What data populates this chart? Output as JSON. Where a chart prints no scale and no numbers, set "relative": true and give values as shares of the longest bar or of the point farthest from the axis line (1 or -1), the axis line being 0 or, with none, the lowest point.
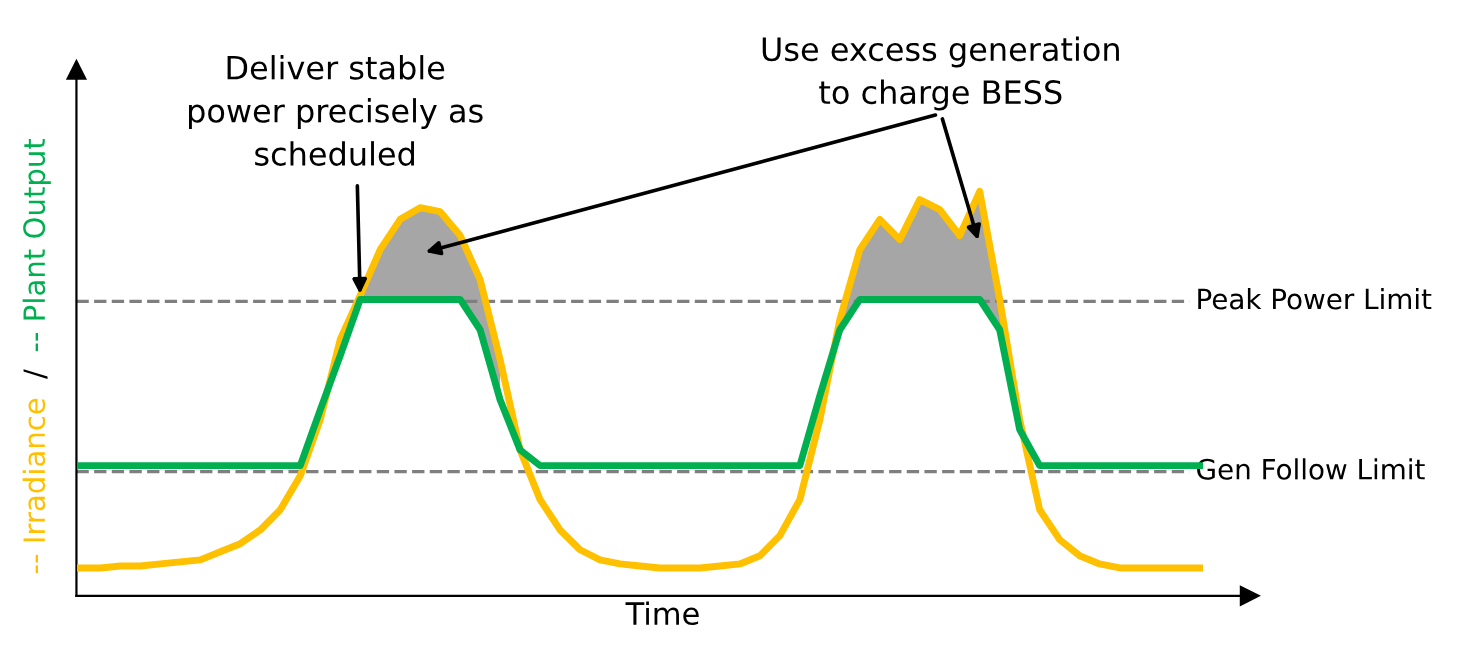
{
  "chart_data": {
    "type": "line",
    "relative": true,
    "categories": [
      null,
      null,
      null,
      null,
      null,
      null,
      null,
      null,
      null,
      null,
      null,
      null,
      null,
      null,
      null,
      null,
      null,
      null,
      null,
      null,
      null,
      null,
      null,
      null,
      null,
      null,
      null,
      null,
      null,
      null,
      null,
      null,
      null,
      null,
      null,
      null,
      null,
      null,
      null,
      null,
      null,
      null,
      null,
      null,
      null,
      null,
      null,
      null,
      null,
      null,
      null,
      null,
      null,
      null,
      null,
      null,
      null
    ],
    "xlabel": "Time",
    "ylabel": "/",
    "marker": "none",
    "line_style": "solid",
    "series": [
      {
        "name": "-- Irradiance",
        "color": "#ffc000",
        "values": [
          0.069,
          0.069,
          0.074,
          0.074,
          0.079,
          0.084,
          0.089,
          0.109,
          0.129,
          0.163,
          0.213,
          0.297,
          0.436,
          0.634,
          0.743,
          0.856,
          0.931,
          0.96,
          0.95,
          0.891,
          0.782,
          0.584,
          0.361,
          0.238,
          0.163,
          0.114,
          0.089,
          0.079,
          0.074,
          0.069,
          0.069,
          0.069,
          0.074,
          0.079,
          0.099,
          0.149,
          0.238,
          0.436,
          0.683,
          0.856,
          0.931,
          0.881,
          0.98,
          0.955,
          0.891,
          1.0,
          0.733,
          0.436,
          0.213,
          0.139,
          0.099,
          0.079,
          0.069,
          0.069,
          0.069,
          0.069,
          0.069
        ],
        "lower": [
          null,
          null,
          null,
          null,
          null,
          null,
          null,
          null,
          null,
          null,
          null,
          null,
          null,
          0.594,
          0.733,
          0.733,
          0.733,
          0.733,
          0.733,
          0.733,
          0.658,
          0.485,
          null,
          null,
          null,
          null,
          null,
          null,
          null,
          null,
          null,
          null,
          null,
          null,
          null,
          null,
          null,
          null,
          0.658,
          0.733,
          0.733,
          0.733,
          0.733,
          0.733,
          0.733,
          0.733,
          0.658,
          0.411,
          null,
          null,
          null,
          null,
          null,
          null,
          null,
          null,
          null
        ],
        "upper": [
          null,
          null,
          null,
          null,
          null,
          null,
          null,
          null,
          null,
          null,
          null,
          null,
          null,
          0.634,
          0.743,
          0.856,
          0.931,
          0.96,
          0.95,
          0.891,
          0.782,
          0.584,
          null,
          null,
          null,
          null,
          null,
          null,
          null,
          null,
          null,
          null,
          null,
          null,
          null,
          null,
          null,
          null,
          0.683,
          0.856,
          0.931,
          0.881,
          0.98,
          0.955,
          0.891,
          1.0,
          0.733,
          0.436,
          null,
          null,
          null,
          null,
          null,
          null,
          null,
          null,
          null
        ]
      },
      {
        "name": "-- Plant Output",
        "color": "#00b050",
        "values": [
          0.322,
          0.322,
          0.322,
          0.322,
          0.322,
          0.322,
          0.322,
          0.322,
          0.322,
          0.322,
          0.322,
          0.322,
          0.46,
          0.594,
          0.733,
          0.733,
          0.733,
          0.733,
          0.733,
          0.733,
          0.658,
          0.485,
          0.361,
          0.322,
          0.322,
          0.322,
          0.322,
          0.322,
          0.322,
          0.322,
          0.322,
          0.322,
          0.322,
          0.322,
          0.322,
          0.322,
          0.322,
          0.495,
          0.658,
          0.733,
          0.733,
          0.733,
          0.733,
          0.733,
          0.733,
          0.733,
          0.658,
          0.411,
          0.322,
          0.322,
          0.322,
          0.322,
          0.322,
          0.322,
          0.322,
          0.322,
          0.322
        ]
      }
    ],
    "ref_lines": [
      {
        "axis": "y",
        "value": 0.728,
        "label": "Peak Power Limit",
        "color": "#7f7f7f",
        "line_style": "dashed"
      },
      {
        "axis": "y",
        "value": 0.307,
        "label": "Gen Follow Limit",
        "color": "#7f7f7f",
        "line_style": "dashed"
      }
    ],
    "annotations": [
      "Deliver stable\npower precisely as\nscheduled",
      "Use excess generation\nto charge BESS"
    ]
  }
}
